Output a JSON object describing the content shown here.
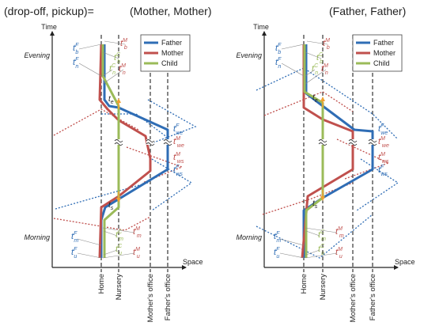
{
  "header": {
    "label": "(drop-off, pickup)=",
    "left_case": "(Mother, Mother)",
    "right_case": "(Father, Father)"
  },
  "axes": {
    "y_label": "Time",
    "x_label": "Space"
  },
  "time_labels": {
    "evening": "Evening",
    "morning": "Morning"
  },
  "places": [
    "Home",
    "Nursery",
    "Mother's office",
    "Father's office"
  ],
  "legend": [
    {
      "name": "Father",
      "color": "#2f6db5"
    },
    {
      "name": "Mother",
      "color": "#c0504d"
    },
    {
      "name": "Child",
      "color": "#9bbb59"
    }
  ],
  "markers": {
    "child_end": "t",
    "child_start": "t",
    "child_end_sub": "e",
    "child_start_sub": "s"
  },
  "annotations": [
    {
      "key": "tbF",
      "base": "t",
      "sub": "b",
      "sup": "F",
      "color": "#2f6db5"
    },
    {
      "key": "tnF",
      "base": "t",
      "sub": "n",
      "sup": "F",
      "color": "#2f6db5"
    },
    {
      "key": "tbM",
      "base": "t",
      "sub": "b",
      "sup": "M",
      "color": "#c0504d"
    },
    {
      "key": "tnM",
      "base": "t",
      "sub": "n",
      "sup": "M",
      "color": "#c0504d"
    },
    {
      "key": "tbC",
      "base": "t",
      "sub": "b",
      "sup": "C",
      "color": "#9bbb59"
    },
    {
      "key": "tnC",
      "base": "t",
      "sub": "n",
      "sup": "C",
      "color": "#9bbb59"
    },
    {
      "key": "tweF",
      "base": "t",
      "sub": "we",
      "sup": "F",
      "color": "#2f6db5"
    },
    {
      "key": "tweM",
      "base": "t",
      "sub": "we",
      "sup": "M",
      "color": "#c0504d"
    },
    {
      "key": "twsM",
      "base": "t",
      "sub": "ws",
      "sup": "M",
      "color": "#c0504d"
    },
    {
      "key": "twsF",
      "base": "t",
      "sub": "ws",
      "sup": "F",
      "color": "#2f6db5"
    },
    {
      "key": "tmF",
      "base": "t",
      "sub": "m",
      "sup": "F",
      "color": "#2f6db5"
    },
    {
      "key": "tuF",
      "base": "t",
      "sub": "u",
      "sup": "F",
      "color": "#2f6db5"
    },
    {
      "key": "tmC",
      "base": "t",
      "sub": "m",
      "sup": "C",
      "color": "#9bbb59"
    },
    {
      "key": "tuC",
      "base": "t",
      "sub": "u",
      "sup": "C",
      "color": "#9bbb59"
    },
    {
      "key": "tmM",
      "base": "t",
      "sub": "m",
      "sup": "M",
      "color": "#c0504d"
    },
    {
      "key": "tuM",
      "base": "t",
      "sub": "u",
      "sup": "M",
      "color": "#c0504d"
    }
  ],
  "colors": {
    "father": "#2f6db5",
    "mother": "#c0504d",
    "child": "#9bbb59",
    "marker": "#f0a030"
  }
}
